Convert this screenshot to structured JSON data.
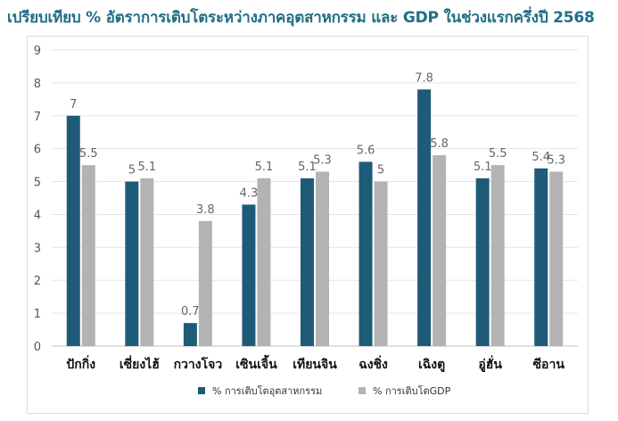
{
  "title": "เปรียบเทียบ % อัตราการเติบโตระหว่างภาคอุตสาหกรรม และ GDP ในช่วงแรกครึ่งปี 2568",
  "colors": {
    "title": "#1f6e87",
    "series1": "#1e5b78",
    "series2": "#b3b3b3",
    "axis_text": "#555555",
    "label_text": "#666666",
    "grid": "#e6e6e6"
  },
  "chart_data": {
    "type": "bar",
    "title": "เปรียบเทียบ % อัตราการเติบโตระหว่างภาคอุตสาหกรรม และ GDP ในช่วงแรกครึ่งปี 2568",
    "categories": [
      "ปักกิ่ง",
      "เซี่ยงไฮ้",
      "กวางโจว",
      "เซินเจิ้น",
      "เทียนจิน",
      "ฉงชิ่ง",
      "เฉิงตู",
      "อู่ฮั่น",
      "ซีอาน"
    ],
    "series": [
      {
        "name": "% การเติบโตอุตสาหกรรม",
        "values": [
          7,
          5,
          0.7,
          4.3,
          5.1,
          5.6,
          7.8,
          5.1,
          5.4
        ]
      },
      {
        "name": "% การเติบโตGDP",
        "values": [
          5.5,
          5.1,
          3.8,
          5.1,
          5.3,
          5,
          5.8,
          5.5,
          5.3
        ]
      }
    ],
    "data_labels": [
      [
        "7",
        "5",
        "0.7",
        "4.3",
        "5.1",
        "5.6",
        "7.8",
        "5.1",
        "5.4"
      ],
      [
        "5.5",
        "5.1",
        "3.8",
        "5.1",
        "5.3",
        "5",
        "5.8",
        "5.5",
        "5.3"
      ]
    ],
    "y_ticks": [
      "0",
      "1",
      "2",
      "3",
      "4",
      "5",
      "6",
      "7",
      "8",
      "9"
    ],
    "ylim": [
      0,
      9
    ],
    "grid": true,
    "legend_position": "bottom"
  }
}
